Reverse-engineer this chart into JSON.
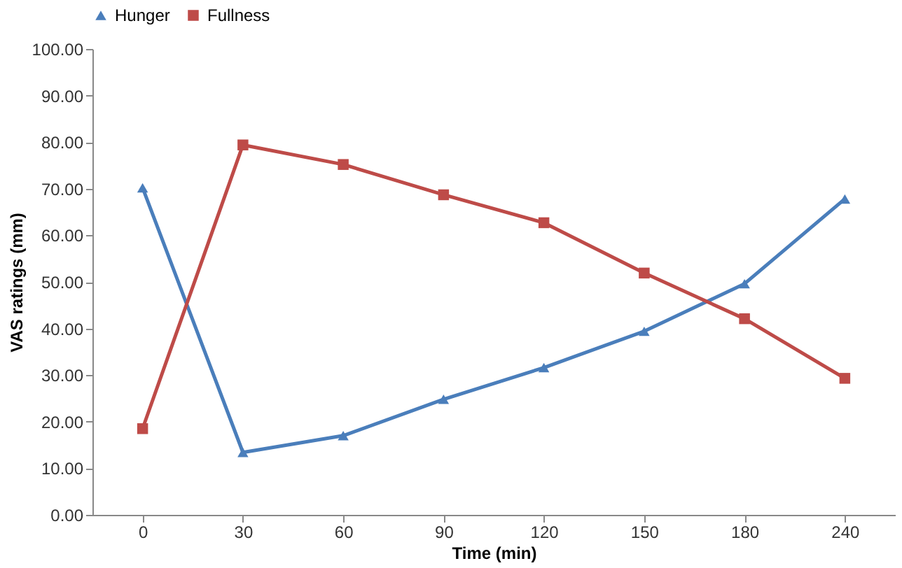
{
  "chart_data": {
    "type": "line",
    "xlabel": "Time (min)",
    "ylabel": "VAS ratings (mm)",
    "categories": [
      "0",
      "30",
      "60",
      "90",
      "120",
      "150",
      "180",
      "240"
    ],
    "series": [
      {
        "name": "Hunger",
        "color": "#4a7ebb",
        "marker": "triangle",
        "values": [
          70.2,
          13.4,
          17.0,
          24.8,
          31.6,
          39.4,
          49.6,
          67.8
        ]
      },
      {
        "name": "Fullness",
        "color": "#be4b48",
        "marker": "square",
        "values": [
          18.5,
          79.4,
          75.2,
          68.7,
          62.7,
          51.9,
          42.1,
          29.3
        ]
      }
    ],
    "ylim": [
      0,
      100
    ],
    "yticks": [
      {
        "value": 0,
        "label": "0.00"
      },
      {
        "value": 10,
        "label": "10.00"
      },
      {
        "value": 20,
        "label": "20.00"
      },
      {
        "value": 30,
        "label": "30.00"
      },
      {
        "value": 40,
        "label": "40.00"
      },
      {
        "value": 50,
        "label": "50.00"
      },
      {
        "value": 60,
        "label": "60.00"
      },
      {
        "value": 70,
        "label": "70.00"
      },
      {
        "value": 80,
        "label": "80.00"
      },
      {
        "value": 90,
        "label": "90.00"
      },
      {
        "value": 100,
        "label": "100.00"
      }
    ],
    "grid": false,
    "legend": "top",
    "line_style": "solid"
  }
}
